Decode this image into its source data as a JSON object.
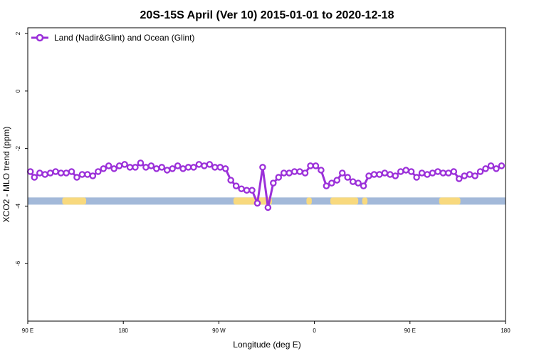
{
  "chart_data": {
    "type": "line",
    "title": "20S-15S April (Ver 10)   2015-01-01 to 2020-12-18",
    "xlabel": "Longitude (deg E)",
    "ylabel": "XCO2 - MLO trend (ppm)",
    "xlim": [
      90,
      450
    ],
    "ylim": [
      -8.0,
      2.2
    ],
    "x_ticks": [
      {
        "value": 90,
        "label": "90 E"
      },
      {
        "value": 162,
        "label": "180"
      },
      {
        "value": 234,
        "label": "90 W"
      },
      {
        "value": 306,
        "label": "0"
      },
      {
        "value": 378,
        "label": "90 E"
      },
      {
        "value": 450,
        "label": "180"
      }
    ],
    "y_ticks": [
      {
        "value": 2,
        "label": "2"
      },
      {
        "value": 0,
        "label": "0"
      },
      {
        "value": -2,
        "label": "-2"
      },
      {
        "value": -4,
        "label": "-4"
      },
      {
        "value": -6,
        "label": "-6"
      }
    ],
    "legend": {
      "position": "top-left"
    },
    "grid": false,
    "colors": {
      "series": "#9b30d9",
      "ocean": "#a3b9d9",
      "land": "#f8d97e"
    },
    "surface_band": {
      "y_range": [
        -3.95,
        -3.7
      ],
      "land_segments": [
        [
          116,
          134
        ],
        [
          245,
          274
        ],
        [
          300,
          304
        ],
        [
          318,
          339
        ],
        [
          342,
          346
        ],
        [
          400,
          416
        ]
      ]
    },
    "series": [
      {
        "name": "Land (Nadir&Glint) and Ocean (Glint)",
        "x": [
          92,
          95,
          99,
          103,
          107,
          111,
          115,
          119,
          123,
          127,
          131,
          135,
          139,
          143,
          147,
          151,
          155,
          159,
          163,
          167,
          171,
          175,
          179,
          183,
          187,
          191,
          195,
          199,
          203,
          207,
          211,
          215,
          219,
          223,
          227,
          231,
          235,
          239,
          243,
          247,
          251,
          255,
          259,
          263,
          267,
          271,
          275,
          279,
          283,
          287,
          291,
          295,
          299,
          303,
          307,
          311,
          315,
          319,
          323,
          327,
          331,
          335,
          339,
          343,
          347,
          351,
          355,
          359,
          363,
          367,
          371,
          375,
          379,
          383,
          387,
          391,
          395,
          399,
          403,
          407,
          411,
          415,
          419,
          423,
          427,
          431,
          435,
          439,
          443,
          447
        ],
        "y": [
          -2.8,
          -3.0,
          -2.85,
          -2.9,
          -2.85,
          -2.8,
          -2.85,
          -2.85,
          -2.8,
          -3.0,
          -2.9,
          -2.9,
          -2.95,
          -2.8,
          -2.7,
          -2.6,
          -2.7,
          -2.6,
          -2.55,
          -2.65,
          -2.65,
          -2.5,
          -2.65,
          -2.6,
          -2.7,
          -2.65,
          -2.75,
          -2.7,
          -2.6,
          -2.7,
          -2.65,
          -2.65,
          -2.55,
          -2.6,
          -2.55,
          -2.65,
          -2.65,
          -2.7,
          -3.1,
          -3.3,
          -3.4,
          -3.45,
          -3.45,
          -3.9,
          -2.65,
          -4.05,
          -3.2,
          -3.0,
          -2.85,
          -2.85,
          -2.8,
          -2.8,
          -2.85,
          -2.6,
          -2.6,
          -2.75,
          -3.3,
          -3.2,
          -3.1,
          -2.85,
          -3.0,
          -3.15,
          -3.2,
          -3.3,
          -2.95,
          -2.9,
          -2.9,
          -2.85,
          -2.9,
          -2.95,
          -2.8,
          -2.75,
          -2.8,
          -3.0,
          -2.85,
          -2.9,
          -2.85,
          -2.8,
          -2.85,
          -2.85,
          -2.8,
          -3.05,
          -2.95,
          -2.9,
          -2.95,
          -2.8,
          -2.7,
          -2.6,
          -2.7,
          -2.6
        ]
      }
    ]
  }
}
